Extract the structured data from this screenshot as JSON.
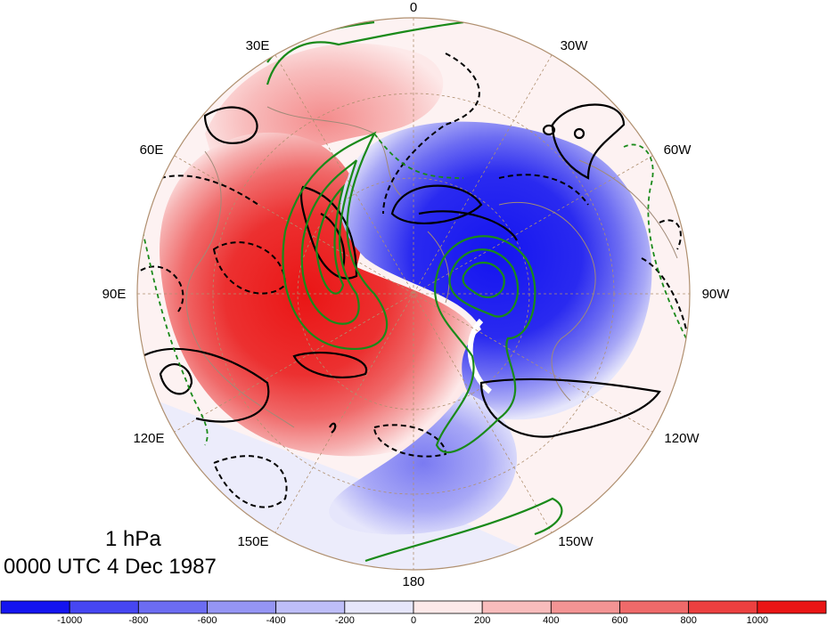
{
  "map": {
    "projection": "north-polar-stereographic",
    "longitude_labels": [
      "0",
      "30W",
      "60W",
      "90W",
      "120W",
      "150W",
      "180",
      "150E",
      "120E",
      "90E",
      "60E",
      "30E"
    ],
    "level": "1 hPa",
    "timestamp": "0000 UTC 4 Dec 1987",
    "colors": {
      "positive": "#ef2020",
      "negative": "#2020ee",
      "contour_black": "#000000",
      "contour_green": "#1a8a1a",
      "coastline": "#a08a78",
      "grid": "#b09070"
    }
  },
  "colorbar": {
    "tick_labels": [
      "-1000",
      "-800",
      "-600",
      "-400",
      "-200",
      "0",
      "200",
      "400",
      "600",
      "800",
      "1000"
    ],
    "colors": [
      "#1414f0",
      "#4646f2",
      "#6c6cf2",
      "#9595f4",
      "#bebef8",
      "#e6e6fb",
      "#fde9e9",
      "#f8bcbc",
      "#f39494",
      "#ef6a6a",
      "#ec4040",
      "#ea1515"
    ]
  }
}
